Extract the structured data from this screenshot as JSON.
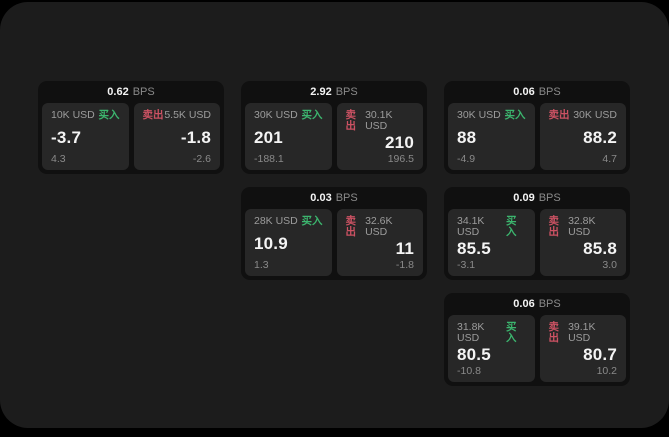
{
  "colors": {
    "surface": "#1c1c1c",
    "card": "#101010",
    "panel": "#272727",
    "green": "#3cb56e",
    "red": "#cc5263"
  },
  "labels": {
    "unit": "BPS",
    "buy": "买入",
    "sell": "卖出"
  },
  "cards": [
    {
      "spread": "0.62",
      "unit": "BPS",
      "buy": {
        "size": "10K USD",
        "label": "买入",
        "price": "-3.7",
        "change": "4.3"
      },
      "sell": {
        "label": "卖出",
        "size": "5.5K USD",
        "price": "-1.8",
        "change": "-2.6"
      }
    },
    {
      "spread": "2.92",
      "unit": "BPS",
      "buy": {
        "size": "30K USD",
        "label": "买入",
        "price": "201",
        "change": "-188.1"
      },
      "sell": {
        "label": "卖出",
        "size": "30.1K USD",
        "price": "210",
        "change": "196.5"
      }
    },
    {
      "spread": "0.06",
      "unit": "BPS",
      "buy": {
        "size": "30K USD",
        "label": "买入",
        "price": "88",
        "change": "-4.9"
      },
      "sell": {
        "label": "卖出",
        "size": "30K USD",
        "price": "88.2",
        "change": "4.7"
      }
    },
    {
      "spread": "0.03",
      "unit": "BPS",
      "buy": {
        "size": "28K USD",
        "label": "买入",
        "price": "10.9",
        "change": "1.3"
      },
      "sell": {
        "label": "卖出",
        "size": "32.6K USD",
        "price": "11",
        "change": "-1.8"
      }
    },
    {
      "spread": "0.09",
      "unit": "BPS",
      "buy": {
        "size": "34.1K USD",
        "label": "买入",
        "price": "85.5",
        "change": "-3.1"
      },
      "sell": {
        "label": "卖出",
        "size": "32.8K USD",
        "price": "85.8",
        "change": "3.0"
      }
    },
    {
      "spread": "0.06",
      "unit": "BPS",
      "buy": {
        "size": "31.8K USD",
        "label": "买入",
        "price": "80.5",
        "change": "-10.8"
      },
      "sell": {
        "label": "卖出",
        "size": "39.1K USD",
        "price": "80.7",
        "change": "10.2"
      }
    }
  ]
}
